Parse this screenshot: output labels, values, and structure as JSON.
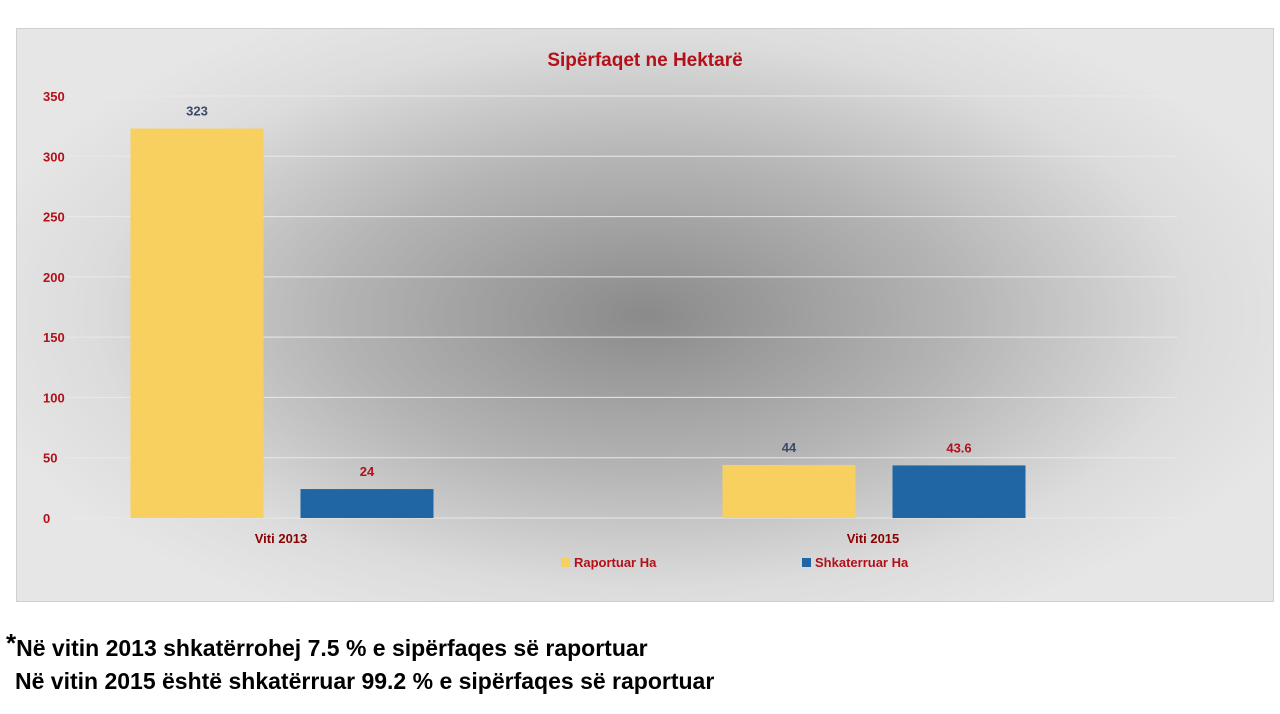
{
  "chart_data": {
    "type": "bar",
    "title": "Sipërfaqet ne Hektarë",
    "categories": [
      "Viti 2013",
      "Viti 2015"
    ],
    "series": [
      {
        "name": "Raportuar Ha",
        "values": [
          323,
          44
        ],
        "color": "#F7D05F",
        "label_color": "#3B4A6B"
      },
      {
        "name": "Shkaterruar Ha",
        "values": [
          24,
          43.6
        ],
        "color": "#2166A4",
        "label_color": "#B3101A"
      }
    ],
    "ylim": [
      0,
      350
    ],
    "yticks": [
      0,
      50,
      100,
      150,
      200,
      250,
      300,
      350
    ],
    "grid": true,
    "legend": "bottom",
    "colors": {
      "title": "#B3101A",
      "yticks": "#B3101A",
      "xticks": "#8B0000",
      "legend_text": "#B3101A"
    }
  },
  "notes": {
    "star": "*",
    "line1": "Në vitin 2013 shkatërrohej 7.5 % e sipërfaqes së raportuar",
    "line2": "Në vitin 2015 është shkatërruar 99.2 % e sipërfaqes së raportuar"
  }
}
